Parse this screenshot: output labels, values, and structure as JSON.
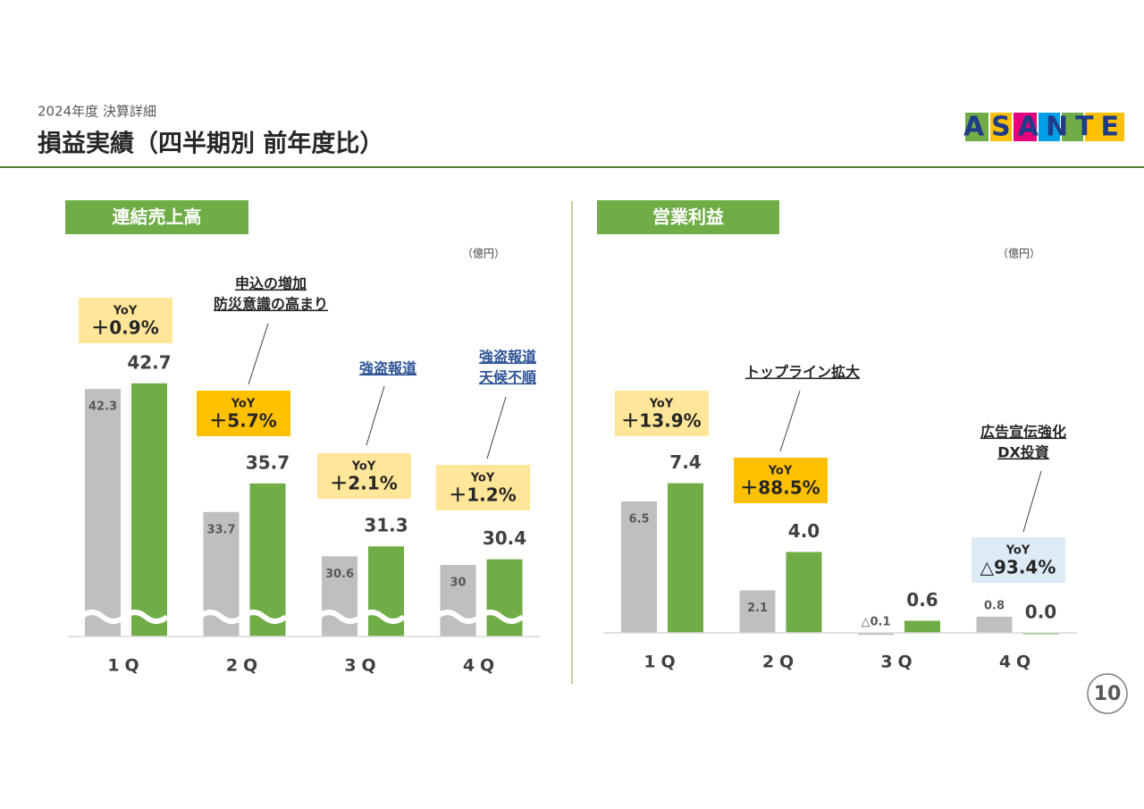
{
  "header": {
    "subtitle": "2024年度 決算詳細",
    "title": "損益実績（四半期別 前年度比）",
    "logo": "ASANTE"
  },
  "page_number": "10",
  "chart_data": [
    {
      "type": "bar",
      "title": "連結売上高",
      "unit": "（億円）",
      "axis_break": true,
      "categories": [
        "1Q",
        "2Q",
        "3Q",
        "4Q"
      ],
      "series": [
        {
          "color": "#bfbfbf",
          "values": [
            42.3,
            33.7,
            30.6,
            30.0
          ]
        },
        {
          "color": "#70ad47",
          "values": [
            42.7,
            35.7,
            31.3,
            30.4
          ]
        }
      ],
      "ylim": [
        25,
        45
      ],
      "annotations": [
        {
          "label": "YoY",
          "text": "＋0.9%",
          "color": "#ffe699"
        },
        {
          "label": "YoY",
          "text": "＋5.7%",
          "color": "#ffc000"
        },
        {
          "label": "YoY",
          "text": "＋2.1%",
          "color": "#ffe699"
        },
        {
          "label": "YoY",
          "text": "＋1.2%",
          "color": "#ffe699"
        }
      ],
      "callouts": [
        {
          "lines": [
            "申込の増加",
            "防災意識の高まり"
          ],
          "color": "#262626"
        },
        {
          "lines": [
            "強盗報道"
          ],
          "color": "#2f5597"
        },
        {
          "lines": [
            "強盗報道",
            "天候不順"
          ],
          "color": "#2f5597"
        }
      ]
    },
    {
      "type": "bar",
      "title": "営業利益",
      "unit": "（億円）",
      "axis_break": false,
      "categories": [
        "1Q",
        "2Q",
        "3Q",
        "4Q"
      ],
      "series": [
        {
          "color": "#bfbfbf",
          "values": [
            6.5,
            2.1,
            -0.1,
            0.8
          ],
          "value_labels": [
            "6.5",
            "2.1",
            "△0.1",
            "0.8"
          ]
        },
        {
          "color": "#70ad47",
          "values": [
            7.4,
            4.0,
            0.6,
            0.0
          ],
          "value_labels": [
            "7.4",
            "4.0",
            "0.6",
            "0.0"
          ]
        }
      ],
      "ylim": [
        0,
        8
      ],
      "annotations": [
        {
          "label": "YoY",
          "text": "＋13.9%",
          "color": "#ffe699"
        },
        {
          "label": "YoY",
          "text": "＋88.5%",
          "color": "#ffc000"
        },
        {
          "label": "YoY",
          "text": "△93.4%",
          "color": "#ddebf7"
        }
      ],
      "callouts": [
        {
          "lines": [
            "トップライン拡大"
          ],
          "color": "#262626"
        },
        {
          "lines": [
            "広告宣伝強化",
            "DX投資"
          ],
          "color": "#262626"
        }
      ]
    }
  ]
}
